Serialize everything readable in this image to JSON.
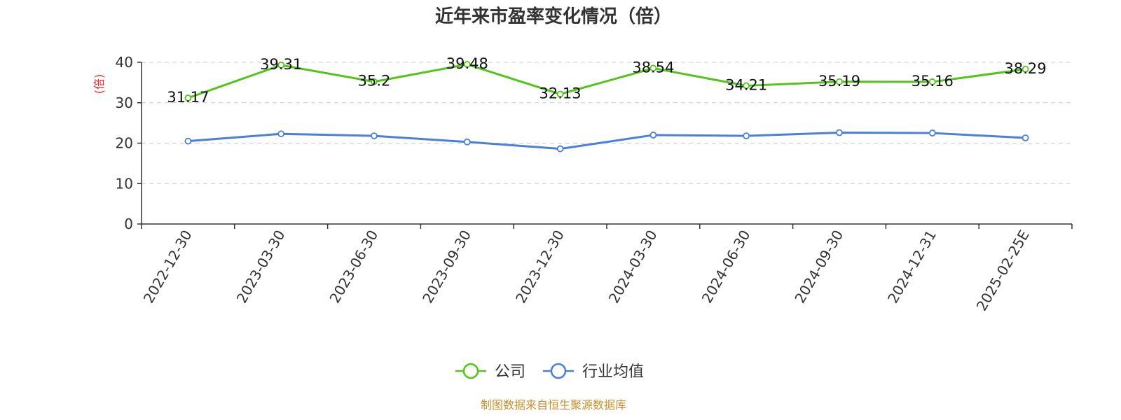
{
  "chart_data": {
    "type": "line",
    "title": "近年来市盈率变化情况（倍）",
    "ylabel": "(倍)",
    "ylim": [
      0,
      40
    ],
    "yticks": [
      0,
      10,
      20,
      30,
      40
    ],
    "grid": true,
    "legend_position": "bottom-center",
    "categories": [
      "2022-12-30",
      "2023-03-30",
      "2023-06-30",
      "2023-09-30",
      "2023-12-30",
      "2024-03-30",
      "2024-06-30",
      "2024-09-30",
      "2024-12-31",
      "2025-02-25E"
    ],
    "series": [
      {
        "name": "公司",
        "color": "#52c41a",
        "values": [
          31.17,
          39.31,
          35.2,
          39.48,
          32.13,
          38.54,
          34.21,
          35.19,
          35.16,
          38.29
        ],
        "show_labels": true
      },
      {
        "name": "行业均值",
        "color": "#4a7fdb",
        "values": [
          20.5,
          22.3,
          21.8,
          20.3,
          18.6,
          22.0,
          21.8,
          22.6,
          22.5,
          21.3
        ],
        "show_labels": false
      }
    ],
    "source": "制图数据来自恒生聚源数据库"
  },
  "colors": {
    "ylabel": "#e8262a",
    "source": "#c8902e",
    "axis": "#333333",
    "grid": "#cccccc"
  }
}
